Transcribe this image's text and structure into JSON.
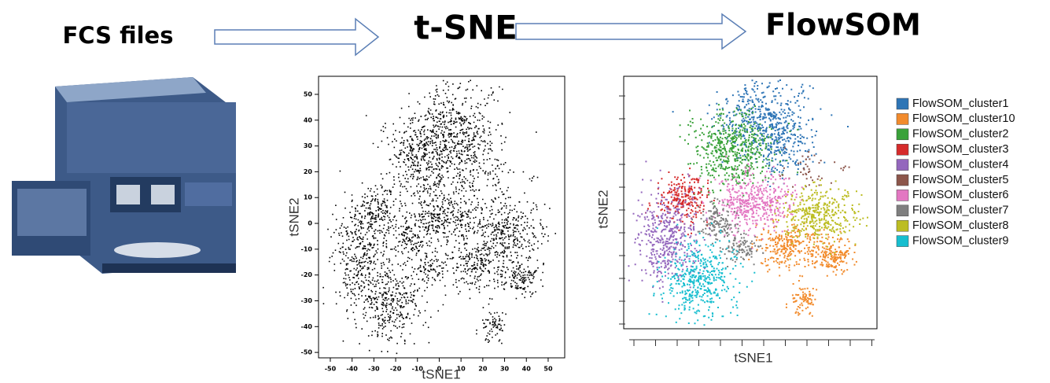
{
  "header": {
    "steps": [
      "FCS files",
      "t-SNE",
      "FlowSOM"
    ]
  },
  "tsne_plot": {
    "x_label": "tSNE1",
    "y_label": "tSNE2",
    "xlim": [
      -55.4,
      57.6
    ],
    "ylim": [
      -52.1,
      57
    ],
    "xticks": [
      -50,
      -40,
      -30,
      -20,
      -10,
      0,
      10,
      20,
      30,
      40,
      50
    ],
    "yticks": [
      -50,
      -40,
      -30,
      -20,
      -10,
      0,
      10,
      20,
      30,
      40,
      50
    ]
  },
  "flowsom_plot": {
    "x_label": "tSNE1",
    "y_label": "tSNE2",
    "legend": [
      {
        "name": "FlowSOM_cluster1",
        "color": "#2e75b6"
      },
      {
        "name": "FlowSOM_cluster10",
        "color": "#f28b2c"
      },
      {
        "name": "FlowSOM_cluster2",
        "color": "#3aa23a"
      },
      {
        "name": "FlowSOM_cluster3",
        "color": "#d62b2b"
      },
      {
        "name": "FlowSOM_cluster4",
        "color": "#9467bd"
      },
      {
        "name": "FlowSOM_cluster5",
        "color": "#8c564b"
      },
      {
        "name": "FlowSOM_cluster6",
        "color": "#e377c2"
      },
      {
        "name": "FlowSOM_cluster7",
        "color": "#7f7f7f"
      },
      {
        "name": "FlowSOM_cluster8",
        "color": "#bcbd22"
      },
      {
        "name": "FlowSOM_cluster9",
        "color": "#17becf"
      }
    ]
  }
}
